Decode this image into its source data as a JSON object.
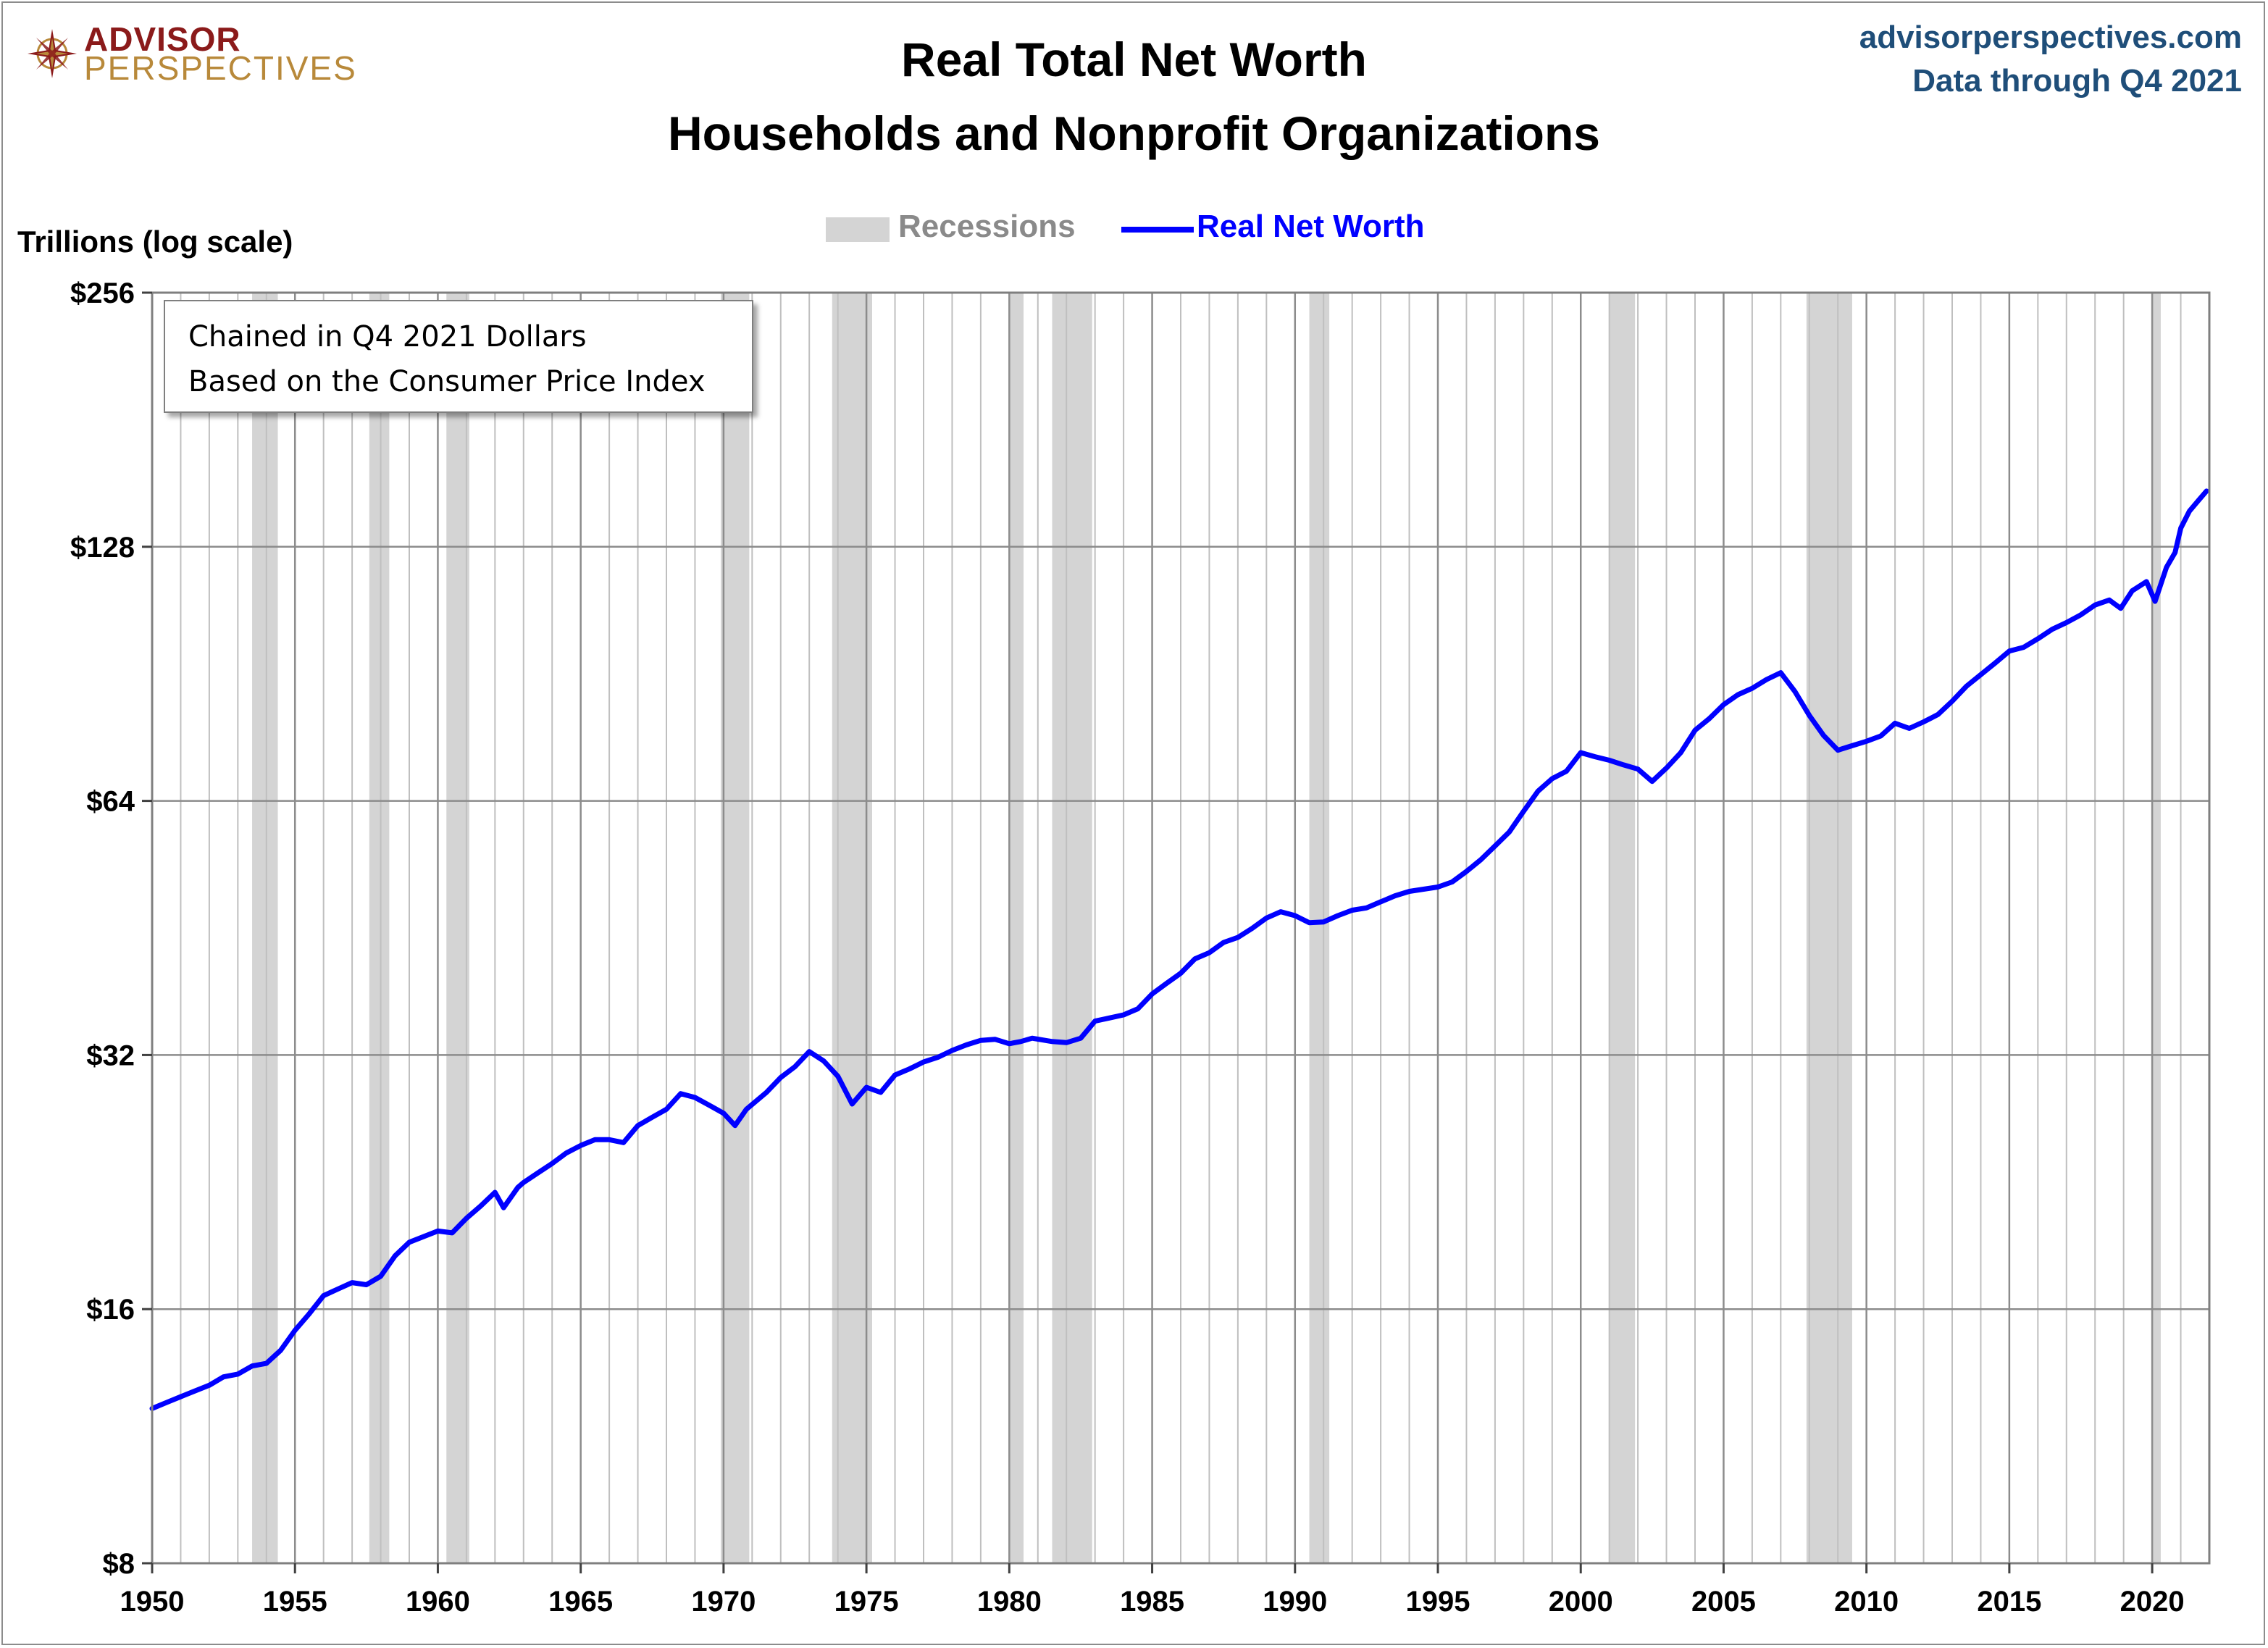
{
  "logo": {
    "line1": "ADVISOR",
    "line2": "PERSPECTIVES"
  },
  "header": {
    "site": "advisorperspectives.com",
    "data_through": "Data through Q4 2021"
  },
  "chart_data": {
    "type": "line",
    "title": "Real Total Net Worth",
    "subtitle": "Households and Nonprofit Organizations",
    "ylabel": "Trillions (log scale)",
    "xlabel": "",
    "yscale": "log2",
    "ylim": [
      8,
      256
    ],
    "xlim": [
      1950,
      2022
    ],
    "yticks": [
      8,
      16,
      32,
      64,
      128,
      256
    ],
    "ytick_labels": [
      "$8",
      "$16",
      "$32",
      "$64",
      "$128",
      "$256"
    ],
    "xticks": [
      1950,
      1955,
      1960,
      1965,
      1970,
      1975,
      1980,
      1985,
      1990,
      1995,
      2000,
      2005,
      2010,
      2015,
      2020
    ],
    "xtick_labels": [
      "1950",
      "1955",
      "1960",
      "1965",
      "1970",
      "1975",
      "1980",
      "1985",
      "1990",
      "1995",
      "2000",
      "2005",
      "2010",
      "2015",
      "2020"
    ],
    "grid": true,
    "legend": {
      "position": "top-center",
      "entries": [
        "Recessions",
        "Real Net Worth"
      ]
    },
    "annotation": {
      "line1": "Chained in Q4 2021 Dollars",
      "line2": "Based on the Consumer Price Index"
    },
    "colors": {
      "line": "#0000ff",
      "recession": "#d4d4d4",
      "grid": "#a6a6a6",
      "frame": "#7f7f7f"
    },
    "recessions": [
      [
        1953.5,
        1954.4
      ],
      [
        1957.6,
        1958.3
      ],
      [
        1960.3,
        1961.1
      ],
      [
        1969.9,
        1970.9
      ],
      [
        1973.8,
        1975.2
      ],
      [
        1980.0,
        1980.5
      ],
      [
        1981.5,
        1982.9
      ],
      [
        1990.5,
        1991.2
      ],
      [
        2001.0,
        2001.9
      ],
      [
        2007.9,
        2009.5
      ],
      [
        2020.0,
        2020.3
      ]
    ],
    "series": [
      {
        "name": "Real Net Worth",
        "x": [
          1950.0,
          1950.5,
          1951.0,
          1951.5,
          1952.0,
          1952.5,
          1953.0,
          1953.5,
          1954.0,
          1954.5,
          1955.0,
          1955.5,
          1956.0,
          1956.5,
          1957.0,
          1957.5,
          1958.0,
          1958.5,
          1959.0,
          1959.5,
          1960.0,
          1960.5,
          1961.0,
          1961.5,
          1962.0,
          1962.3,
          1962.8,
          1963.0,
          1963.5,
          1964.0,
          1964.5,
          1965.0,
          1965.5,
          1966.0,
          1966.5,
          1967.0,
          1967.5,
          1968.0,
          1968.5,
          1969.0,
          1969.5,
          1970.0,
          1970.4,
          1970.8,
          1971.5,
          1972.0,
          1972.5,
          1973.0,
          1973.5,
          1974.0,
          1974.5,
          1975.0,
          1975.5,
          1976.0,
          1976.5,
          1977.0,
          1977.5,
          1978.0,
          1978.5,
          1979.0,
          1979.5,
          1980.0,
          1980.4,
          1980.8,
          1981.5,
          1982.0,
          1982.5,
          1983.0,
          1983.5,
          1984.0,
          1984.5,
          1985.0,
          1985.5,
          1986.0,
          1986.5,
          1987.0,
          1987.5,
          1988.0,
          1988.5,
          1989.0,
          1989.5,
          1990.0,
          1990.5,
          1991.0,
          1991.5,
          1992.0,
          1992.5,
          1993.0,
          1993.5,
          1994.0,
          1994.5,
          1995.0,
          1995.5,
          1996.0,
          1996.5,
          1997.0,
          1997.5,
          1998.0,
          1998.5,
          1999.0,
          1999.5,
          2000.0,
          2000.5,
          2001.0,
          2001.5,
          2002.0,
          2002.5,
          2003.0,
          2003.5,
          2004.0,
          2004.5,
          2005.0,
          2005.5,
          2006.0,
          2006.5,
          2007.0,
          2007.5,
          2008.0,
          2008.5,
          2009.0,
          2009.5,
          2010.0,
          2010.5,
          2011.0,
          2011.5,
          2012.0,
          2012.5,
          2013.0,
          2013.5,
          2014.0,
          2014.5,
          2015.0,
          2015.5,
          2016.0,
          2016.5,
          2017.0,
          2017.5,
          2018.0,
          2018.5,
          2018.9,
          2019.3,
          2019.8,
          2020.1,
          2020.5,
          2020.8,
          2021.0,
          2021.3,
          2021.6,
          2021.9
        ],
        "values": [
          12.2,
          12.4,
          12.6,
          12.8,
          13.0,
          13.3,
          13.4,
          13.7,
          13.8,
          14.3,
          15.1,
          15.8,
          16.6,
          16.9,
          17.2,
          17.1,
          17.5,
          18.5,
          19.2,
          19.5,
          19.8,
          19.7,
          20.5,
          21.2,
          22.0,
          21.1,
          22.3,
          22.6,
          23.2,
          23.8,
          24.5,
          25.0,
          25.4,
          25.4,
          25.2,
          26.4,
          27.0,
          27.6,
          28.8,
          28.5,
          27.9,
          27.3,
          26.4,
          27.6,
          28.9,
          30.1,
          31.0,
          32.3,
          31.5,
          30.2,
          28.0,
          29.3,
          28.9,
          30.3,
          30.8,
          31.4,
          31.8,
          32.4,
          32.9,
          33.3,
          33.4,
          33.0,
          33.2,
          33.5,
          33.2,
          33.1,
          33.5,
          35.1,
          35.4,
          35.7,
          36.3,
          37.8,
          38.9,
          40.0,
          41.6,
          42.3,
          43.5,
          44.1,
          45.2,
          46.5,
          47.3,
          46.8,
          45.9,
          46.0,
          46.8,
          47.5,
          47.8,
          48.6,
          49.4,
          50.0,
          50.3,
          50.6,
          51.3,
          52.8,
          54.5,
          56.6,
          58.8,
          62.2,
          65.7,
          68.0,
          69.4,
          73.0,
          72.2,
          71.5,
          70.6,
          69.8,
          67.5,
          70.0,
          73.0,
          77.6,
          80.1,
          83.2,
          85.5,
          87.0,
          89.1,
          90.8,
          86.2,
          80.8,
          76.5,
          73.5,
          74.4,
          75.3,
          76.4,
          79.1,
          78.0,
          79.4,
          81.0,
          84.0,
          87.5,
          90.3,
          93.2,
          96.3,
          97.3,
          99.6,
          102.2,
          104.1,
          106.3,
          109.2,
          110.7,
          108.2,
          113.5,
          116.4,
          110.3,
          121.0,
          126.0,
          134.7,
          141.0,
          145.0,
          149.0
        ]
      }
    ]
  }
}
